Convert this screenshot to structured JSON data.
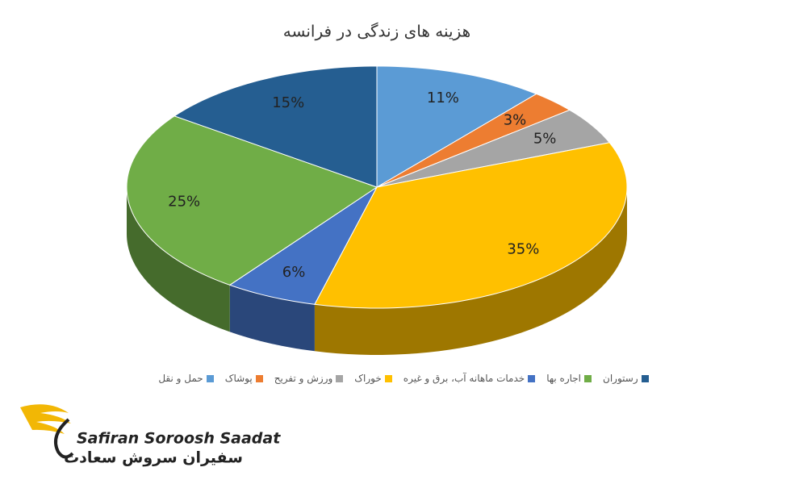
{
  "chart_data": {
    "type": "pie",
    "title": "هزینه های زندگی در فرانسه",
    "categories": [
      "حمل و نقل",
      "پوشاک",
      "ورزش و تفریح",
      "خوراک",
      "خدمات ماهانه آب، برق و غیره",
      "اجاره بها",
      "رستوران"
    ],
    "values": [
      11,
      3,
      5,
      35,
      6,
      25,
      15
    ],
    "value_labels": [
      "11%",
      "3%",
      "5%",
      "35%",
      "6%",
      "25%",
      "15%"
    ],
    "colors": [
      "#5b9bd5",
      "#ed7d31",
      "#a5a5a5",
      "#ffc000",
      "#4472c4",
      "#70ad47",
      "#255e91"
    ]
  },
  "logo": {
    "name_en": "Safiran Soroosh Saadat",
    "name_fa": "سفیران سروش سعادت"
  }
}
